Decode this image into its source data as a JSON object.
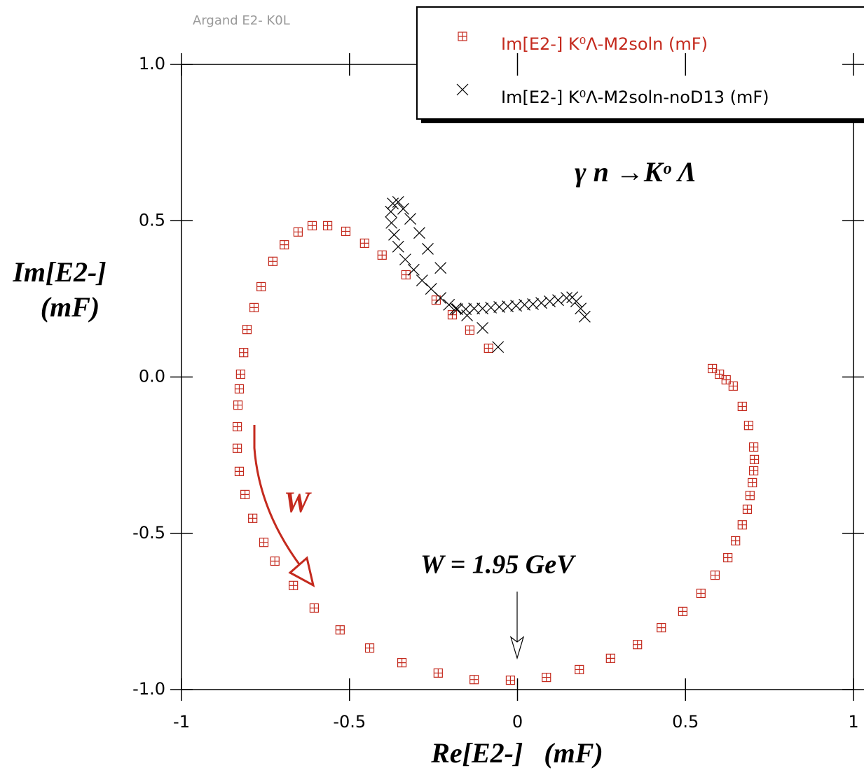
{
  "chart_data": {
    "type": "scatter",
    "title": "Argand E2- K0L",
    "xlabel": "Re[E2-]   (mF)",
    "ylabel": [
      "Im[E2-]",
      "(mF)"
    ],
    "xlim": [
      -1,
      1
    ],
    "ylim": [
      -1,
      1
    ],
    "xticks": [
      -1,
      -0.5,
      0,
      0.5,
      1
    ],
    "yticks": [
      {
        "value": -1,
        "label": "-1.0"
      },
      -0.5,
      {
        "value": 0,
        "label": "0.0"
      },
      0.5,
      {
        "value": 1,
        "label": "1.0"
      }
    ],
    "legend": "top-right",
    "annotations": [
      "γ n →Kᵒ Λ",
      "W = 1.95 GeV",
      "W"
    ],
    "series": [
      {
        "name": "Im[E2-] K⁰Λ-M2soln (mF)",
        "color": "#c42a1e",
        "marker": "square-plus",
        "x": [
          -0.086,
          -0.142,
          -0.194,
          -0.242,
          -0.332,
          -0.403,
          -0.455,
          -0.511,
          -0.565,
          -0.611,
          -0.653,
          -0.694,
          -0.728,
          -0.763,
          -0.784,
          -0.805,
          -0.815,
          -0.824,
          -0.828,
          -0.832,
          -0.834,
          -0.834,
          -0.828,
          -0.811,
          -0.788,
          -0.755,
          -0.722,
          -0.667,
          -0.605,
          -0.528,
          -0.44,
          -0.344,
          -0.236,
          -0.129,
          -0.021,
          0.086,
          0.184,
          0.277,
          0.357,
          0.428,
          0.492,
          0.546,
          0.588,
          0.626,
          0.649,
          0.669,
          0.684,
          0.692,
          0.699,
          0.703,
          0.705,
          0.703,
          0.688,
          0.669,
          0.642,
          0.621,
          0.601,
          0.58
        ],
        "values": [
          0.092,
          0.15,
          0.199,
          0.246,
          0.327,
          0.39,
          0.428,
          0.466,
          0.484,
          0.484,
          0.464,
          0.423,
          0.37,
          0.289,
          0.222,
          0.152,
          0.078,
          0.009,
          -0.038,
          -0.09,
          -0.159,
          -0.228,
          -0.302,
          -0.376,
          -0.452,
          -0.529,
          -0.589,
          -0.667,
          -0.739,
          -0.809,
          -0.867,
          -0.914,
          -0.947,
          -0.968,
          -0.97,
          -0.961,
          -0.936,
          -0.9,
          -0.856,
          -0.802,
          -0.75,
          -0.692,
          -0.634,
          -0.578,
          -0.524,
          -0.473,
          -0.423,
          -0.379,
          -0.338,
          -0.3,
          -0.264,
          -0.224,
          -0.155,
          -0.094,
          -0.029,
          -0.009,
          0.009,
          0.027
        ]
      },
      {
        "name": "Im[E2-] K⁰Λ-M2soln-noD13 (mF)",
        "color": "#000000",
        "marker": "x",
        "x": [
          -0.058,
          -0.104,
          -0.15,
          -0.184,
          -0.204,
          -0.229,
          -0.257,
          -0.284,
          -0.309,
          -0.334,
          -0.355,
          -0.367,
          -0.375,
          -0.377,
          -0.371,
          -0.355,
          -0.34,
          -0.319,
          -0.292,
          -0.267,
          -0.229,
          -0.179,
          -0.154,
          -0.129,
          -0.104,
          -0.079,
          -0.054,
          -0.029,
          -0.004,
          0.021,
          0.046,
          0.071,
          0.096,
          0.121,
          0.146,
          0.163,
          0.175,
          0.188,
          0.2
        ],
        "values": [
          0.096,
          0.157,
          0.197,
          0.219,
          0.231,
          0.253,
          0.282,
          0.309,
          0.343,
          0.376,
          0.417,
          0.455,
          0.493,
          0.529,
          0.555,
          0.56,
          0.538,
          0.506,
          0.461,
          0.41,
          0.349,
          0.217,
          0.217,
          0.219,
          0.219,
          0.222,
          0.224,
          0.226,
          0.228,
          0.231,
          0.233,
          0.237,
          0.242,
          0.246,
          0.253,
          0.255,
          0.242,
          0.219,
          0.193
        ]
      }
    ]
  }
}
